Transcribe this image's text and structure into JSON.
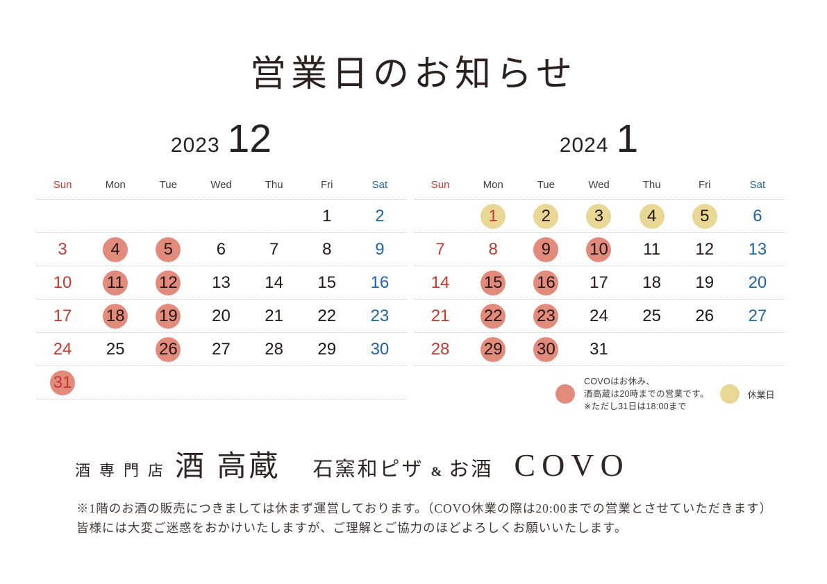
{
  "title": "営業日のお知らせ",
  "weekdays": [
    "Sun",
    "Mon",
    "Tue",
    "Wed",
    "Thu",
    "Fri",
    "Sat"
  ],
  "calendars": [
    {
      "year": "2023",
      "month": "12",
      "weeks": [
        [
          null,
          null,
          null,
          null,
          null,
          {
            "d": "1"
          },
          {
            "d": "2",
            "c": "blue"
          }
        ],
        [
          {
            "d": "3",
            "c": "red"
          },
          {
            "d": "4",
            "circle": "red"
          },
          {
            "d": "5",
            "circle": "red"
          },
          {
            "d": "6"
          },
          {
            "d": "7"
          },
          {
            "d": "8"
          },
          {
            "d": "9",
            "c": "blue"
          }
        ],
        [
          {
            "d": "10",
            "c": "red"
          },
          {
            "d": "11",
            "circle": "red"
          },
          {
            "d": "12",
            "circle": "red"
          },
          {
            "d": "13"
          },
          {
            "d": "14"
          },
          {
            "d": "15"
          },
          {
            "d": "16",
            "c": "blue"
          }
        ],
        [
          {
            "d": "17",
            "c": "red"
          },
          {
            "d": "18",
            "circle": "red"
          },
          {
            "d": "19",
            "circle": "red"
          },
          {
            "d": "20"
          },
          {
            "d": "21"
          },
          {
            "d": "22"
          },
          {
            "d": "23",
            "c": "blue"
          }
        ],
        [
          {
            "d": "24",
            "c": "red"
          },
          {
            "d": "25"
          },
          {
            "d": "26",
            "circle": "red"
          },
          {
            "d": "27"
          },
          {
            "d": "28"
          },
          {
            "d": "29"
          },
          {
            "d": "30",
            "c": "blue"
          }
        ],
        [
          {
            "d": "31",
            "c": "red",
            "circle": "red"
          },
          null,
          null,
          null,
          null,
          null,
          null
        ]
      ]
    },
    {
      "year": "2024",
      "month": "1",
      "weeks": [
        [
          null,
          {
            "d": "1",
            "c": "red",
            "circle": "yellow"
          },
          {
            "d": "2",
            "circle": "yellow"
          },
          {
            "d": "3",
            "circle": "yellow"
          },
          {
            "d": "4",
            "circle": "yellow"
          },
          {
            "d": "5",
            "circle": "yellow"
          },
          {
            "d": "6",
            "c": "blue"
          }
        ],
        [
          {
            "d": "7",
            "c": "red"
          },
          {
            "d": "8",
            "c": "red"
          },
          {
            "d": "9",
            "circle": "red"
          },
          {
            "d": "10",
            "circle": "red"
          },
          {
            "d": "11"
          },
          {
            "d": "12"
          },
          {
            "d": "13",
            "c": "blue"
          }
        ],
        [
          {
            "d": "14",
            "c": "red"
          },
          {
            "d": "15",
            "circle": "red"
          },
          {
            "d": "16",
            "circle": "red"
          },
          {
            "d": "17"
          },
          {
            "d": "18"
          },
          {
            "d": "19"
          },
          {
            "d": "20",
            "c": "blue"
          }
        ],
        [
          {
            "d": "21",
            "c": "red"
          },
          {
            "d": "22",
            "circle": "red"
          },
          {
            "d": "23",
            "circle": "red"
          },
          {
            "d": "24"
          },
          {
            "d": "25"
          },
          {
            "d": "26"
          },
          {
            "d": "27",
            "c": "blue"
          }
        ],
        [
          {
            "d": "28",
            "c": "red"
          },
          {
            "d": "29",
            "circle": "red"
          },
          {
            "d": "30",
            "circle": "red"
          },
          {
            "d": "31"
          },
          null,
          null,
          null
        ]
      ]
    }
  ],
  "legend": {
    "covo_lines": [
      "COVOはお休み、",
      "酒高蔵は20時までの営業です。",
      "※ただし31日は18:00まで"
    ],
    "closed_label": "休業日"
  },
  "brand": {
    "store1_type": "酒専門店",
    "store1_name": "酒 高蔵",
    "store2_type_left": "石窯和ピザ",
    "store2_amp": "&",
    "store2_type_right": "お酒",
    "store2_name": "COVO"
  },
  "notes": [
    "※1階のお酒の販売につきましては休まず運営しております。（COVO休業の際は20:00までの営業とさせていただきます）",
    "皆様には大変ご迷惑をおかけいたしますが、ご理解とご協力のほどよろしくお願いいたします。"
  ],
  "colors": {
    "sunday_holiday_red": "#c4392b",
    "saturday_blue": "#2063a8",
    "covo_closed_circle": "#e28b7c",
    "holiday_circle": "#e9d795",
    "ink": "#231815"
  }
}
